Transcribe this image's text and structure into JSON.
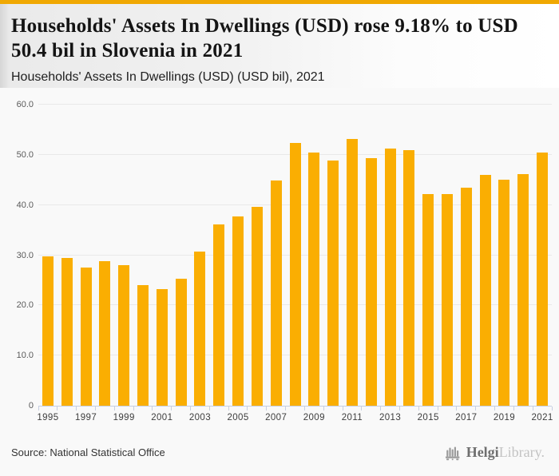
{
  "page": {
    "accent_color": "#F0A802"
  },
  "header": {
    "title": "Households' Assets In Dwellings (USD) rose 9.18% to USD 50.4 bil in Slovenia in 2021",
    "subtitle": "Households' Assets In Dwellings (USD) (USD bil), 2021"
  },
  "chart_data": {
    "type": "bar",
    "title": "Households' Assets In Dwellings (USD) rose 9.18% to USD 50.4 bil in Slovenia in 2021",
    "subtitle": "Households' Assets In Dwellings (USD) (USD bil), 2021",
    "bar_color": "#FAAE02",
    "grid": true,
    "ylim": [
      0,
      60
    ],
    "y_tick_values": [
      0,
      10,
      20,
      30,
      40,
      50,
      60
    ],
    "y_tick_labels": [
      "0",
      "10.0",
      "20.0",
      "30.0",
      "40.0",
      "50.0",
      "60.0"
    ],
    "categories": [
      "1995",
      "1996",
      "1997",
      "1998",
      "1999",
      "2000",
      "2001",
      "2002",
      "2003",
      "2004",
      "2005",
      "2006",
      "2007",
      "2008",
      "2009",
      "2010",
      "2011",
      "2012",
      "2013",
      "2014",
      "2015",
      "2016",
      "2017",
      "2018",
      "2019",
      "2020",
      "2021"
    ],
    "values": [
      29.7,
      29.4,
      27.5,
      28.8,
      28.0,
      24.0,
      23.3,
      25.3,
      30.7,
      36.1,
      37.7,
      39.6,
      44.9,
      52.3,
      50.5,
      48.8,
      53.1,
      49.4,
      51.2,
      50.9,
      42.2,
      42.2,
      43.4,
      46.0,
      45.0,
      46.2,
      50.4
    ],
    "x_tick_labels": [
      "1995",
      "1997",
      "1999",
      "2001",
      "2003",
      "2005",
      "2007",
      "2009",
      "2011",
      "2013",
      "2015",
      "2017",
      "2019",
      "2021"
    ]
  },
  "footer": {
    "source": "Source: National Statistical Office",
    "logo": {
      "icon": "bar-chart-logo-icon",
      "brand_primary": "Helgi",
      "brand_secondary": "Library."
    }
  }
}
